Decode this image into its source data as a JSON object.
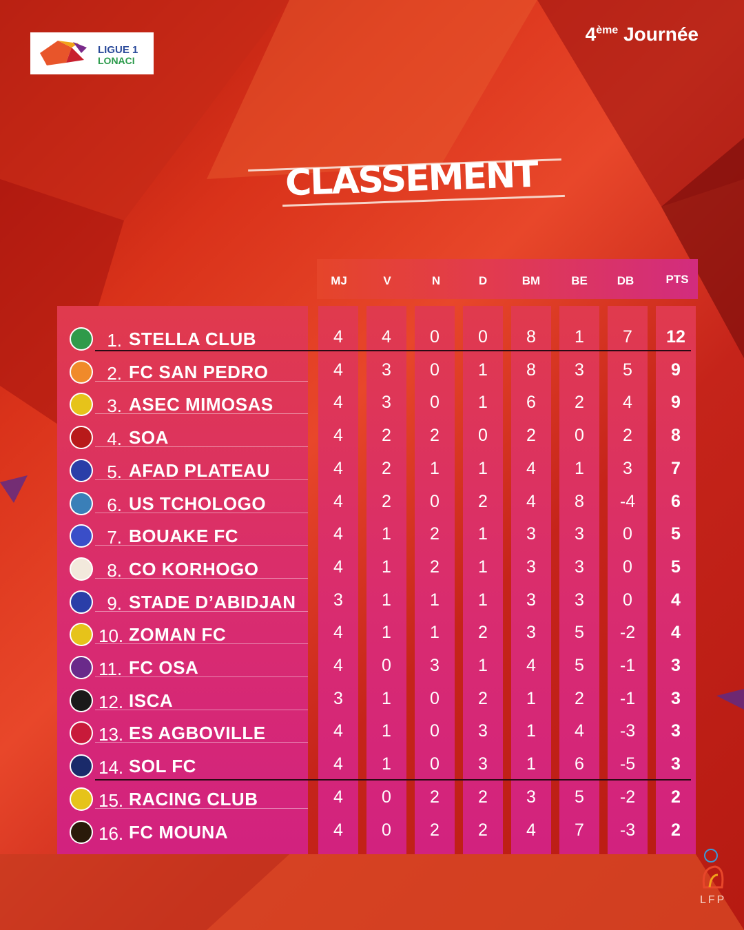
{
  "header": {
    "league_line1": "LIGUE 1",
    "league_line2": "LONACI",
    "round_number": "4",
    "round_suffix": "ème",
    "round_label": "Journée"
  },
  "title": "CLASSEMENT",
  "columns": [
    "MJ",
    "V",
    "N",
    "D",
    "BM",
    "BE",
    "DB",
    "PTS"
  ],
  "teams": [
    {
      "rank": "1.",
      "name": "STELLA CLUB",
      "stats": [
        "4",
        "4",
        "0",
        "0",
        "8",
        "1",
        "7",
        "12"
      ],
      "badge_color": "#2f9a4a"
    },
    {
      "rank": "2.",
      "name": "FC SAN PEDRO",
      "stats": [
        "4",
        "3",
        "0",
        "1",
        "8",
        "3",
        "5",
        "9"
      ],
      "badge_color": "#f08a2a"
    },
    {
      "rank": "3.",
      "name": "ASEC MIMOSAS",
      "stats": [
        "4",
        "3",
        "0",
        "1",
        "6",
        "2",
        "4",
        "9"
      ],
      "badge_color": "#e6c31a"
    },
    {
      "rank": "4.",
      "name": "SOA",
      "stats": [
        "4",
        "2",
        "2",
        "0",
        "2",
        "0",
        "2",
        "8"
      ],
      "badge_color": "#b81a1a"
    },
    {
      "rank": "5.",
      "name": "AFAD PLATEAU",
      "stats": [
        "4",
        "2",
        "1",
        "1",
        "4",
        "1",
        "3",
        "7"
      ],
      "badge_color": "#2a3ea8"
    },
    {
      "rank": "6.",
      "name": "US TCHOLOGO",
      "stats": [
        "4",
        "2",
        "0",
        "2",
        "4",
        "8",
        "-4",
        "6"
      ],
      "badge_color": "#3a7fb8"
    },
    {
      "rank": "7.",
      "name": "BOUAKE FC",
      "stats": [
        "4",
        "1",
        "2",
        "1",
        "3",
        "3",
        "0",
        "5"
      ],
      "badge_color": "#3a4ec8"
    },
    {
      "rank": "8.",
      "name": "CO KORHOGO",
      "stats": [
        "4",
        "1",
        "2",
        "1",
        "3",
        "3",
        "0",
        "5"
      ],
      "badge_color": "#f2e9dc"
    },
    {
      "rank": "9.",
      "name": "STADE D’ABIDJAN",
      "stats": [
        "3",
        "1",
        "1",
        "1",
        "3",
        "3",
        "0",
        "4"
      ],
      "badge_color": "#2a3ea8"
    },
    {
      "rank": "10.",
      "name": "ZOMAN FC",
      "stats": [
        "4",
        "1",
        "1",
        "2",
        "3",
        "5",
        "-2",
        "4"
      ],
      "badge_color": "#e6c31a"
    },
    {
      "rank": "11.",
      "name": "FC OSA",
      "stats": [
        "4",
        "0",
        "3",
        "1",
        "4",
        "5",
        "-1",
        "3"
      ],
      "badge_color": "#6a2a8a"
    },
    {
      "rank": "12.",
      "name": "ISCA",
      "stats": [
        "3",
        "1",
        "0",
        "2",
        "1",
        "2",
        "-1",
        "3"
      ],
      "badge_color": "#1a1a1a"
    },
    {
      "rank": "13.",
      "name": "ES AGBOVILLE",
      "stats": [
        "4",
        "1",
        "0",
        "3",
        "1",
        "4",
        "-3",
        "3"
      ],
      "badge_color": "#c81a3a"
    },
    {
      "rank": "14.",
      "name": "SOL FC",
      "stats": [
        "4",
        "1",
        "0",
        "3",
        "1",
        "6",
        "-5",
        "3"
      ],
      "badge_color": "#1a2a6a"
    },
    {
      "rank": "15.",
      "name": "RACING CLUB",
      "stats": [
        "4",
        "0",
        "2",
        "2",
        "3",
        "5",
        "-2",
        "2"
      ],
      "badge_color": "#e6c31a"
    },
    {
      "rank": "16.",
      "name": "FC MOUNA",
      "stats": [
        "4",
        "0",
        "2",
        "2",
        "4",
        "7",
        "-3",
        "2"
      ],
      "badge_color": "#2a1a0a"
    }
  ],
  "footer_logo": "LFP"
}
